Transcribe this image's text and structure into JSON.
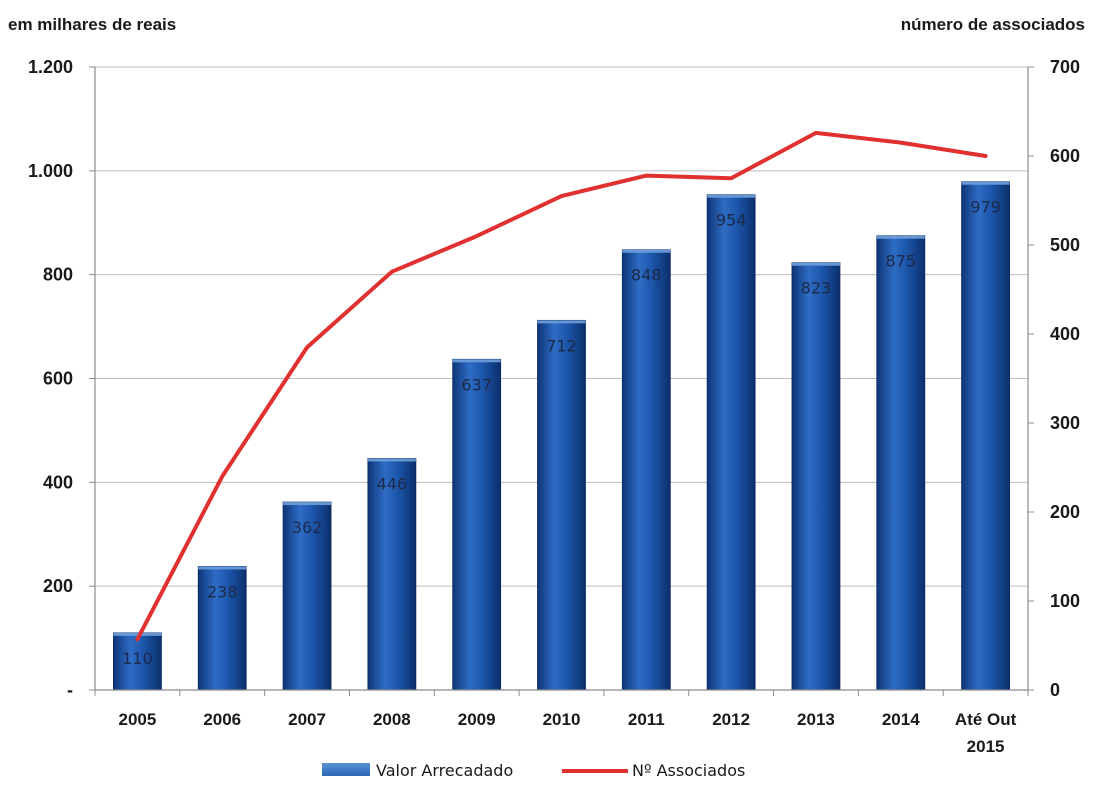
{
  "chart_data": {
    "type": "bar",
    "categories": [
      "2005",
      "2006",
      "2007",
      "2008",
      "2009",
      "2010",
      "2011",
      "2012",
      "2013",
      "2014",
      "Até Out 2015"
    ],
    "category_lines": [
      [
        "2005"
      ],
      [
        "2006"
      ],
      [
        "2007"
      ],
      [
        "2008"
      ],
      [
        "2009"
      ],
      [
        "2010"
      ],
      [
        "2011"
      ],
      [
        "2012"
      ],
      [
        "2013"
      ],
      [
        "2014"
      ],
      [
        "Até Out",
        "2015"
      ]
    ],
    "series": [
      {
        "name": "Valor Arrecadado",
        "type": "bar",
        "axis": "left",
        "color": "#1f56a6",
        "values": [
          110,
          238,
          362,
          446,
          637,
          712,
          848,
          954,
          823,
          875,
          979
        ],
        "labels": [
          "110",
          "238",
          "362",
          "446",
          "637",
          "712",
          "848",
          "954",
          "823",
          "875",
          "979"
        ]
      },
      {
        "name": "Nº Associados",
        "type": "line",
        "axis": "right",
        "color": "#e03030",
        "values": [
          57,
          240,
          385,
          470,
          510,
          555,
          578,
          575,
          626,
          615,
          600
        ]
      }
    ],
    "left_axis": {
      "title": "em milhares de reais",
      "ylim": [
        0,
        1200
      ],
      "ticks": [
        0,
        200,
        400,
        600,
        800,
        1000,
        1200
      ],
      "tick_labels": [
        "-",
        "200",
        "400",
        "600",
        "800",
        "1.000",
        "1.200"
      ]
    },
    "right_axis": {
      "title": "número de associados",
      "ylim": [
        0,
        700
      ],
      "ticks": [
        0,
        100,
        200,
        300,
        400,
        500,
        600,
        700
      ],
      "tick_labels": [
        "0",
        "100",
        "200",
        "300",
        "400",
        "500",
        "600",
        "700"
      ]
    },
    "grid": true,
    "legend_position": "bottom-center"
  }
}
